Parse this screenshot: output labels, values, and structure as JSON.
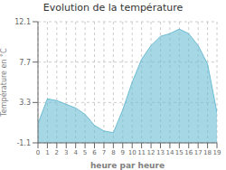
{
  "chart_data": {
    "type": "area",
    "title": "Evolution de la température",
    "xlabel": "heure par heure",
    "ylabel": "Température en °C",
    "x": [
      0,
      1,
      2,
      3,
      4,
      5,
      6,
      7,
      8,
      9,
      10,
      11,
      12,
      13,
      14,
      15,
      16,
      17,
      18,
      19
    ],
    "values": [
      1.0,
      3.7,
      3.5,
      3.1,
      2.7,
      2.0,
      0.8,
      0.2,
      0.0,
      2.5,
      5.5,
      8.0,
      9.5,
      10.5,
      10.8,
      11.3,
      10.8,
      9.5,
      7.5,
      2.2
    ],
    "color": "#6bbcd4",
    "xlim": [
      0,
      19
    ],
    "ylim": [
      -1.1,
      12.1
    ],
    "xticks": [
      0,
      1,
      2,
      3,
      4,
      5,
      6,
      7,
      8,
      9,
      10,
      11,
      12,
      13,
      14,
      15,
      16,
      17,
      18,
      19
    ],
    "yticks": [
      -1.1,
      3.3,
      7.7,
      12.1
    ],
    "grid": true
  }
}
